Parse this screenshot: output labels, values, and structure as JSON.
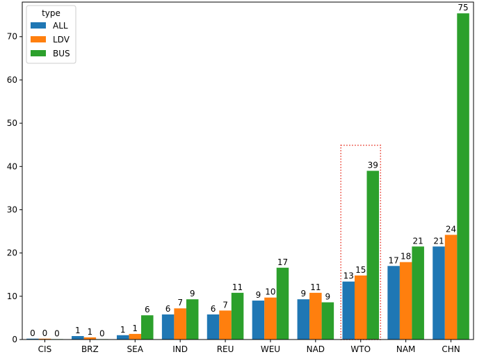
{
  "chart_data": {
    "type": "bar",
    "title": "",
    "xlabel": "",
    "ylabel": "",
    "categories": [
      "CIS",
      "BRZ",
      "SEA",
      "IND",
      "REU",
      "WEU",
      "NAD",
      "WTO",
      "NAM",
      "CHN"
    ],
    "series": [
      {
        "name": "ALL",
        "color": "#1f77b4",
        "values": [
          0.2,
          0.8,
          1.0,
          5.8,
          5.8,
          9.0,
          9.3,
          13.4,
          17.0,
          21.5
        ],
        "labels": [
          "0",
          "1",
          "1",
          "6",
          "6",
          "9",
          "9",
          "13",
          "17",
          "21"
        ]
      },
      {
        "name": "LDV",
        "color": "#ff7f0e",
        "values": [
          0.2,
          0.5,
          1.3,
          7.2,
          6.7,
          9.7,
          10.8,
          14.8,
          17.9,
          24.2
        ],
        "labels": [
          "0",
          "1",
          "1",
          "7",
          "7",
          "10",
          "11",
          "15",
          "18",
          "24"
        ]
      },
      {
        "name": "BUS",
        "color": "#2ca02c",
        "values": [
          0.1,
          0.05,
          5.6,
          9.3,
          10.8,
          16.6,
          8.6,
          39.0,
          21.5,
          75.4
        ],
        "labels": [
          "0",
          "0",
          "6",
          "9",
          "11",
          "17",
          "9",
          "39",
          "21",
          "75"
        ]
      }
    ],
    "ylim": [
      0,
      78
    ],
    "yticks": [
      0,
      10,
      20,
      30,
      40,
      50,
      60,
      70
    ],
    "legend": {
      "title": "type",
      "position": "top-left"
    },
    "grid": false,
    "highlight": {
      "category": "WTO",
      "y_top": 44.9,
      "style": "dotted",
      "color": "#e8392b"
    }
  }
}
